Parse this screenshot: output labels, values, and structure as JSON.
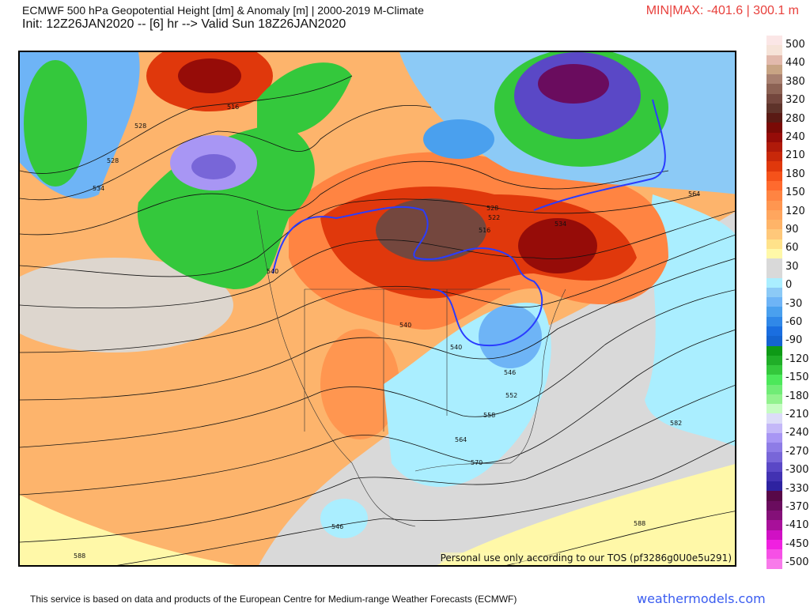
{
  "header": {
    "title": "ECMWF 500 hPa Geopotential Height [dm] & Anomaly [m] | 2000-2019 M-Climate",
    "subtitle": "Init: 12Z26JAN2020 -- [6] hr --> Valid Sun 18Z26JAN2020",
    "minmax": "MIN|MAX: -401.6 | 300.1 m"
  },
  "map": {
    "watermark": "Personal use only according to our TOS (pf3286g0U0e5u291)",
    "contour_labels": [
      "528",
      "528",
      "534",
      "516",
      "540",
      "540",
      "546",
      "552",
      "558",
      "564",
      "570",
      "576",
      "582",
      "588",
      "588",
      "564",
      "516",
      "522",
      "528",
      "534",
      "546",
      "540",
      "582"
    ]
  },
  "colorbar": {
    "unit": "m",
    "labels": [
      "500",
      "440",
      "380",
      "320",
      "280",
      "240",
      "210",
      "180",
      "150",
      "120",
      "90",
      "60",
      "30",
      "0",
      "-30",
      "-60",
      "-90",
      "-120",
      "-150",
      "-180",
      "-210",
      "-240",
      "-270",
      "-300",
      "-330",
      "-370",
      "-410",
      "-450",
      "-500"
    ],
    "colors": [
      "#fbe6e6",
      "#f6e3d8",
      "#e2b9ac",
      "#c8a484",
      "#a88070",
      "#8c6254",
      "#74473e",
      "#5e332a",
      "#5a1a14",
      "#7a0a06",
      "#960c08",
      "#b01a0a",
      "#c8280a",
      "#e0380c",
      "#f5521a",
      "#ff6a2e",
      "#ff8442",
      "#ff9650",
      "#ffa65e",
      "#ffb468",
      "#ffc87a",
      "#ffe28a",
      "#fff8a8",
      "#d9d9d9",
      "#d9d9d9",
      "#aaeeff",
      "#8ccaf6",
      "#6eb4f6",
      "#4aa0ee",
      "#3088e8",
      "#1a6ee0",
      "#1464d0",
      "#0e9a16",
      "#20ae28",
      "#34c83c",
      "#4ce85a",
      "#70ec76",
      "#92f28e",
      "#c6fcc2",
      "#dcdcf8",
      "#c4b8f8",
      "#a896f4",
      "#8e7ce6",
      "#7866d8",
      "#5a48c6",
      "#4232b2",
      "#2e22a0",
      "#580848",
      "#6a0c5e",
      "#841078",
      "#a8109a",
      "#d010c4",
      "#f020e0",
      "#f650e6",
      "#f87aea"
    ]
  },
  "footer": {
    "disclaimer": "This service is based on data and products of the European Centre for Medium-range Weather Forecasts (ECMWF)",
    "brand": "weathermodels.com"
  }
}
